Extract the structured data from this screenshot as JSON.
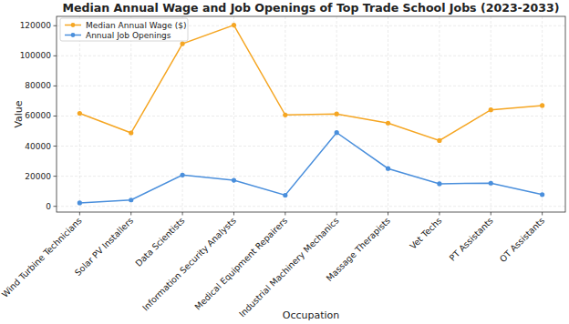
{
  "chart_data": {
    "type": "line",
    "title": "Median Annual Wage and Job Openings of Top Trade School Jobs (2023-2033)",
    "x_label": "Occupation",
    "y_label": "Value",
    "categories": [
      "Wind Turbine Technicians",
      "Solar PV Installers",
      "Data Scientists",
      "Information Security Analysts",
      "Medical Equipment Repairers",
      "Industrial Machinery Mechanics",
      "Massage Therapists",
      "Vet Techs",
      "PT Assistants",
      "OT Assistants"
    ],
    "series": [
      {
        "name": "Median Annual Wage ($)",
        "color": "#f5a623",
        "marker": "circle",
        "values": [
          61800,
          48800,
          108000,
          120400,
          60700,
          61400,
          55300,
          43700,
          64100,
          67000
        ]
      },
      {
        "name": "Annual Job Openings",
        "color": "#4a8fdc",
        "marker": "circle",
        "values": [
          2300,
          4200,
          20800,
          17300,
          7400,
          49000,
          25100,
          15000,
          15400,
          7800
        ]
      }
    ],
    "ylim": [
      -3800,
      126200
    ],
    "yticks": [
      0,
      20000,
      40000,
      60000,
      80000,
      100000,
      120000
    ],
    "grid": true,
    "legend": "upper left"
  }
}
